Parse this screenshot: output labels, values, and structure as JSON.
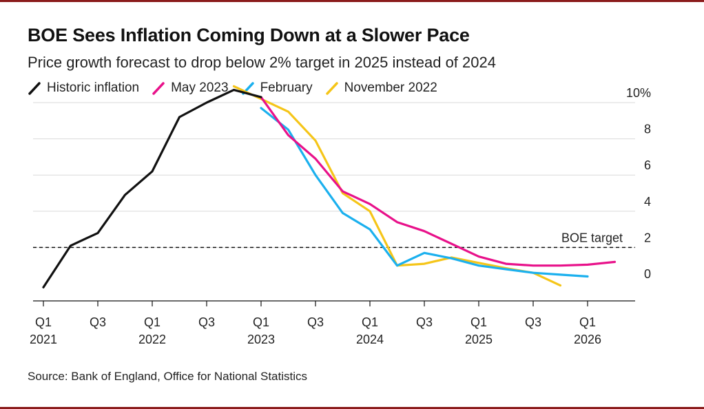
{
  "header": {
    "title": "BOE Sees Inflation Coming Down at a Slower Pace",
    "subtitle": "Price growth forecast to drop below 2% target in 2025 instead of 2024"
  },
  "footer": {
    "source": "Source: Bank of England, Office for National Statistics"
  },
  "colors": {
    "historic": "#111111",
    "may2023": "#e8118a",
    "february": "#1bb0ee",
    "november2022": "#f5c518",
    "grid": "#d9d9d9",
    "frame": "#8a1b1b"
  },
  "chart_data": {
    "type": "line",
    "title": "BOE Sees Inflation Coming Down at a Slower Pace",
    "subtitle": "Price growth forecast to drop below 2% target in 2025 instead of 2024",
    "xlabel": "",
    "ylabel": "",
    "ylim": [
      -0.8,
      10
    ],
    "y_ticks": [
      0,
      2,
      4,
      6,
      8,
      10
    ],
    "y_tick_labels": [
      "0",
      "2",
      "4",
      "6",
      "8",
      "10%"
    ],
    "x_ticks": [
      {
        "q": 0,
        "line1": "Q1",
        "line2": "2021"
      },
      {
        "q": 2,
        "line1": "Q3",
        "line2": ""
      },
      {
        "q": 4,
        "line1": "Q1",
        "line2": "2022"
      },
      {
        "q": 6,
        "line1": "Q3",
        "line2": ""
      },
      {
        "q": 8,
        "line1": "Q1",
        "line2": "2023"
      },
      {
        "q": 10,
        "line1": "Q3",
        "line2": ""
      },
      {
        "q": 12,
        "line1": "Q1",
        "line2": "2024"
      },
      {
        "q": 14,
        "line1": "Q3",
        "line2": ""
      },
      {
        "q": 16,
        "line1": "Q1",
        "line2": "2025"
      },
      {
        "q": 18,
        "line1": "Q3",
        "line2": ""
      },
      {
        "q": 20,
        "line1": "Q1",
        "line2": "2026"
      }
    ],
    "legend": [
      "Historic inflation",
      "May 2023",
      "February",
      "November 2022"
    ],
    "annotations": [
      {
        "text": "BOE target",
        "y": 2
      }
    ],
    "series": [
      {
        "name": "Historic inflation",
        "key": "historic",
        "x": [
          0,
          1,
          2,
          3,
          4,
          5,
          6,
          7,
          8
        ],
        "y": [
          -0.2,
          2.1,
          2.8,
          4.9,
          6.2,
          9.2,
          10.0,
          10.7,
          10.3
        ]
      },
      {
        "name": "May 2023",
        "key": "may2023",
        "x": [
          8,
          9,
          10,
          11,
          12,
          13,
          14,
          15,
          16,
          17,
          18,
          19,
          20,
          21
        ],
        "y": [
          10.3,
          8.2,
          6.9,
          5.1,
          4.4,
          3.4,
          2.9,
          2.2,
          1.5,
          1.1,
          1.0,
          1.0,
          1.05,
          1.2
        ]
      },
      {
        "name": "February",
        "key": "february",
        "x": [
          8,
          9,
          10,
          11,
          12,
          13,
          14,
          15,
          16,
          17,
          18,
          19,
          20
        ],
        "y": [
          9.7,
          8.5,
          6.0,
          3.9,
          3.0,
          1.0,
          1.7,
          1.4,
          1.0,
          0.8,
          0.6,
          0.5,
          0.4
        ]
      },
      {
        "name": "November 2022",
        "key": "november2022",
        "x": [
          7,
          8,
          9,
          10,
          11,
          12,
          13,
          14,
          15,
          16,
          17,
          18,
          19
        ],
        "y": [
          10.9,
          10.2,
          9.5,
          7.9,
          5.0,
          4.0,
          1.0,
          1.1,
          1.45,
          1.15,
          0.85,
          0.6,
          -0.1
        ]
      }
    ]
  }
}
